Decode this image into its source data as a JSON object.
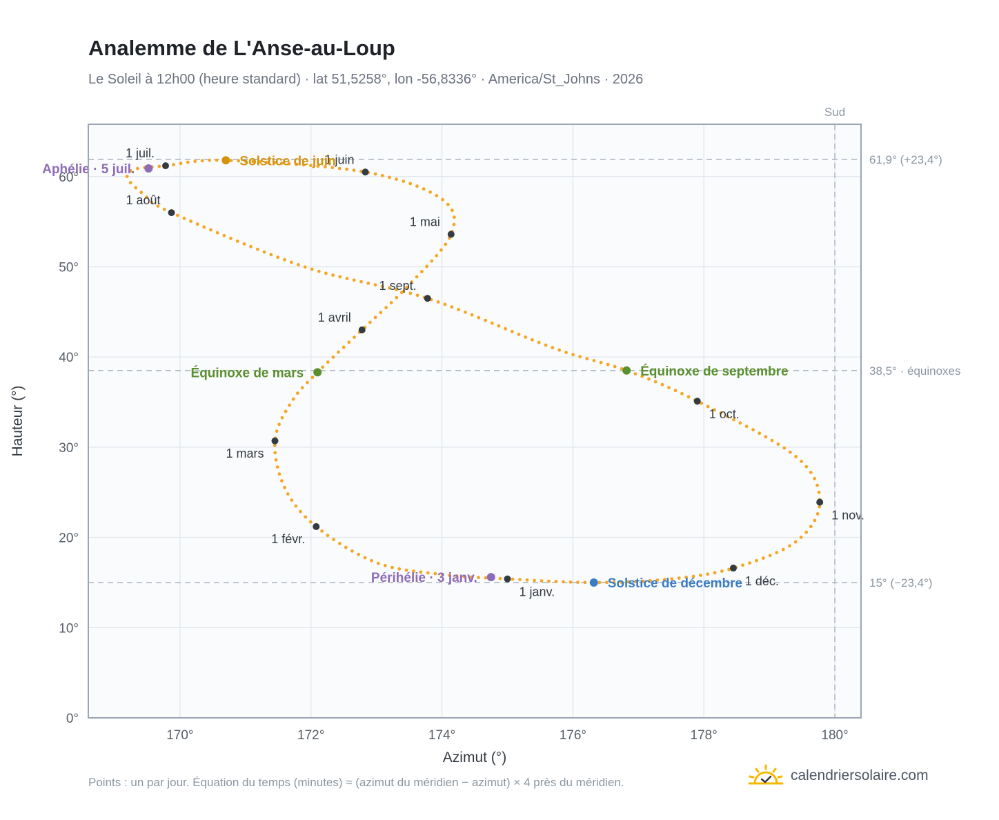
{
  "title": "Analemme de L'Anse-au-Loup",
  "subtitle": "Le Soleil à 12h00 (heure standard) · lat 51,5258°, lon -56,8336° · America/St_Johns · 2026",
  "footnote": "Points : un par jour. Équation du temps (minutes) ≈ (azimut du méridien − azimut) × 4 près du méridien.",
  "brand": {
    "name": "calendriersolaire.com",
    "icon": "sun-check-icon"
  },
  "colors": {
    "curve": "#f5a623",
    "month_marker": "#333a40",
    "solstice_summer": "#d4930f",
    "solstice_winter": "#3b7cc4",
    "equinox": "#5a8f2e",
    "apsis": "#8e6bb8",
    "reference": "#b0bac5"
  },
  "chart_data": {
    "type": "scatter",
    "xlabel": "Azimut (°)",
    "ylabel": "Hauteur (°)",
    "xlim": [
      168.6,
      180.4
    ],
    "ylim": [
      0,
      65.8
    ],
    "xticks": [
      {
        "v": 170,
        "label": "170°"
      },
      {
        "v": 172,
        "label": "172°"
      },
      {
        "v": 174,
        "label": "174°"
      },
      {
        "v": 176,
        "label": "176°"
      },
      {
        "v": 178,
        "label": "178°"
      },
      {
        "v": 180,
        "label": "180°"
      }
    ],
    "yticks": [
      {
        "v": 0,
        "label": "0°"
      },
      {
        "v": 10,
        "label": "10°"
      },
      {
        "v": 20,
        "label": "20°"
      },
      {
        "v": 30,
        "label": "30°"
      },
      {
        "v": 40,
        "label": "40°"
      },
      {
        "v": 50,
        "label": "50°"
      },
      {
        "v": 60,
        "label": "60°"
      }
    ],
    "grid": true,
    "curve_keypoints": [
      [
        175.0,
        15.4
      ],
      [
        174.0,
        15.9
      ],
      [
        173.0,
        17.2
      ],
      [
        172.08,
        21.2
      ],
      [
        171.6,
        25.5
      ],
      [
        171.45,
        30.7
      ],
      [
        171.7,
        35.0
      ],
      [
        172.1,
        38.3
      ],
      [
        172.78,
        43.0
      ],
      [
        173.5,
        48.0
      ],
      [
        174.14,
        53.6
      ],
      [
        174.0,
        57.5
      ],
      [
        172.83,
        60.5
      ],
      [
        170.7,
        61.8
      ],
      [
        169.78,
        61.2
      ],
      [
        169.3,
        60.8
      ],
      [
        169.2,
        59.8
      ],
      [
        169.45,
        58.0
      ],
      [
        169.87,
        56.0
      ],
      [
        171.9,
        50.0
      ],
      [
        173.78,
        46.5
      ],
      [
        175.7,
        41.0
      ],
      [
        176.82,
        38.5
      ],
      [
        177.9,
        35.1
      ],
      [
        179.4,
        29.0
      ],
      [
        179.77,
        23.9
      ],
      [
        179.4,
        19.5
      ],
      [
        178.45,
        16.6
      ],
      [
        177.5,
        15.4
      ],
      [
        176.32,
        15.0
      ],
      [
        175.0,
        15.4
      ]
    ],
    "month_markers": [
      {
        "label": "1 janv.",
        "x": 175.0,
        "y": 15.4,
        "anchor": "below-right"
      },
      {
        "label": "1 févr.",
        "x": 172.08,
        "y": 21.2,
        "anchor": "below-left"
      },
      {
        "label": "1 mars",
        "x": 171.45,
        "y": 30.7,
        "anchor": "below-left"
      },
      {
        "label": "1 avril",
        "x": 172.78,
        "y": 43.0,
        "anchor": "above-left"
      },
      {
        "label": "1 mai",
        "x": 174.14,
        "y": 53.6,
        "anchor": "above-left"
      },
      {
        "label": "1 juin",
        "x": 172.83,
        "y": 60.5,
        "anchor": "above-left"
      },
      {
        "label": "1 juil.",
        "x": 169.78,
        "y": 61.2,
        "anchor": "above-left"
      },
      {
        "label": "1 août",
        "x": 169.87,
        "y": 56.0,
        "anchor": "above-left"
      },
      {
        "label": "1 sept.",
        "x": 173.78,
        "y": 46.5,
        "anchor": "above-left"
      },
      {
        "label": "1 oct.",
        "x": 177.9,
        "y": 35.1,
        "anchor": "below-right"
      },
      {
        "label": "1 nov.",
        "x": 179.77,
        "y": 23.9,
        "anchor": "below-right"
      },
      {
        "label": "1 déc.",
        "x": 178.45,
        "y": 16.6,
        "anchor": "below-right"
      }
    ],
    "events": [
      {
        "label": "Solstice de juin",
        "x": 170.7,
        "y": 61.8,
        "color": "#d4930f",
        "anchor": "right"
      },
      {
        "label": "Solstice de décembre",
        "x": 176.32,
        "y": 15.0,
        "color": "#3b7cc4",
        "anchor": "right"
      },
      {
        "label": "Équinoxe de mars",
        "x": 172.1,
        "y": 38.3,
        "color": "#5a8f2e",
        "anchor": "left"
      },
      {
        "label": "Équinoxe de septembre",
        "x": 176.82,
        "y": 38.5,
        "color": "#5a8f2e",
        "anchor": "right"
      },
      {
        "label": "Aphélie · 5 juil.",
        "x": 169.52,
        "y": 60.9,
        "color": "#8e6bb8",
        "anchor": "left"
      },
      {
        "label": "Périhélie · 3 janv.",
        "x": 174.75,
        "y": 15.6,
        "color": "#8e6bb8",
        "anchor": "left"
      }
    ],
    "reference_lines": [
      {
        "axis": "y",
        "value": 61.9,
        "label": "61,9° (+23,4°)"
      },
      {
        "axis": "y",
        "value": 38.5,
        "label": "38,5° · équinoxes"
      },
      {
        "axis": "y",
        "value": 15.0,
        "label": "15° (−23,4°)"
      },
      {
        "axis": "x",
        "value": 180.0,
        "label": "Sud"
      }
    ]
  }
}
